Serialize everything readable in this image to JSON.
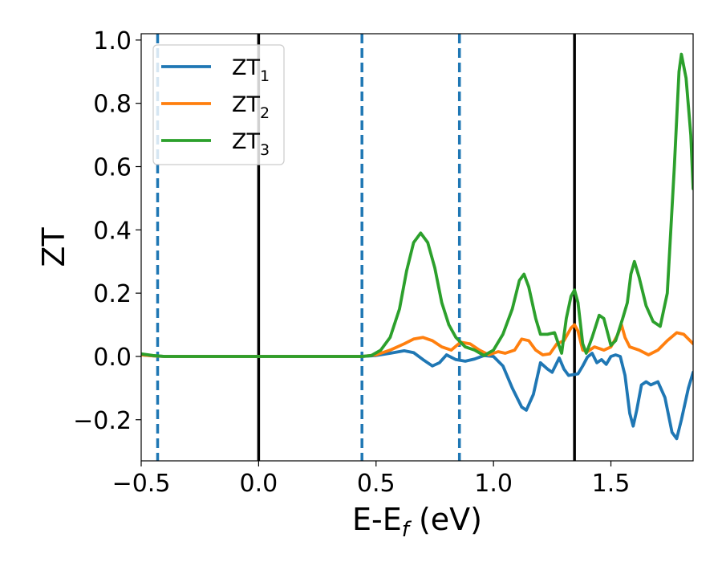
{
  "chart_data": {
    "type": "line",
    "xlabel": {
      "main": "E-E",
      "sub": "f",
      "unit": " (eV)"
    },
    "ylabel": "ZT",
    "xlim": [
      -0.5,
      1.85
    ],
    "ylim": [
      -0.33,
      1.02
    ],
    "xticks": [
      {
        "value": -0.5,
        "label": "−0.5"
      },
      {
        "value": 0.0,
        "label": "0.0"
      },
      {
        "value": 0.5,
        "label": "0.5"
      },
      {
        "value": 1.0,
        "label": "1.0"
      },
      {
        "value": 1.5,
        "label": "1.5"
      }
    ],
    "yticks": [
      {
        "value": -0.2,
        "label": "−0.2"
      },
      {
        "value": 0.0,
        "label": "0.0"
      },
      {
        "value": 0.2,
        "label": "0.2"
      },
      {
        "value": 0.4,
        "label": "0.4"
      },
      {
        "value": 0.6,
        "label": "0.6"
      },
      {
        "value": 0.8,
        "label": "0.8"
      },
      {
        "value": 1.0,
        "label": "1.0"
      }
    ],
    "grid": false,
    "legend_position": "top-left",
    "vertical_lines": [
      {
        "x": -0.43,
        "style": "dashed",
        "color": "#1f77b4"
      },
      {
        "x": 0.0,
        "style": "solid",
        "color": "#000000"
      },
      {
        "x": 0.44,
        "style": "dashed",
        "color": "#1f77b4"
      },
      {
        "x": 0.855,
        "style": "dashed",
        "color": "#1f77b4"
      },
      {
        "x": 1.345,
        "style": "solid",
        "color": "#000000"
      }
    ],
    "series": [
      {
        "name": "ZT",
        "sub": "1",
        "color": "#1f77b4",
        "points": [
          [
            -0.5,
            0.005
          ],
          [
            -0.45,
            0.002
          ],
          [
            -0.4,
            0.0
          ],
          [
            0.0,
            0.0
          ],
          [
            0.44,
            0.0
          ],
          [
            0.5,
            0.003
          ],
          [
            0.56,
            0.01
          ],
          [
            0.62,
            0.018
          ],
          [
            0.66,
            0.012
          ],
          [
            0.7,
            -0.01
          ],
          [
            0.74,
            -0.03
          ],
          [
            0.77,
            -0.02
          ],
          [
            0.8,
            0.005
          ],
          [
            0.84,
            -0.01
          ],
          [
            0.88,
            -0.015
          ],
          [
            0.92,
            -0.008
          ],
          [
            0.96,
            0.003
          ],
          [
            1.0,
            0.0
          ],
          [
            1.04,
            -0.03
          ],
          [
            1.08,
            -0.1
          ],
          [
            1.12,
            -0.16
          ],
          [
            1.14,
            -0.17
          ],
          [
            1.17,
            -0.12
          ],
          [
            1.2,
            -0.02
          ],
          [
            1.23,
            -0.04
          ],
          [
            1.25,
            -0.05
          ],
          [
            1.28,
            -0.005
          ],
          [
            1.3,
            -0.04
          ],
          [
            1.32,
            -0.06
          ],
          [
            1.36,
            -0.055
          ],
          [
            1.38,
            -0.03
          ],
          [
            1.4,
            -0.002
          ],
          [
            1.42,
            0.01
          ],
          [
            1.44,
            -0.02
          ],
          [
            1.46,
            -0.01
          ],
          [
            1.48,
            -0.025
          ],
          [
            1.5,
            0.0
          ],
          [
            1.52,
            0.005
          ],
          [
            1.54,
            0.0
          ],
          [
            1.56,
            -0.06
          ],
          [
            1.58,
            -0.18
          ],
          [
            1.595,
            -0.22
          ],
          [
            1.61,
            -0.17
          ],
          [
            1.63,
            -0.09
          ],
          [
            1.65,
            -0.08
          ],
          [
            1.67,
            -0.09
          ],
          [
            1.7,
            -0.08
          ],
          [
            1.73,
            -0.13
          ],
          [
            1.76,
            -0.24
          ],
          [
            1.78,
            -0.26
          ],
          [
            1.8,
            -0.2
          ],
          [
            1.83,
            -0.1
          ],
          [
            1.85,
            -0.05
          ]
        ]
      },
      {
        "name": "ZT",
        "sub": "2",
        "color": "#ff7f0e",
        "points": [
          [
            -0.5,
            0.005
          ],
          [
            -0.45,
            0.002
          ],
          [
            -0.4,
            0.0
          ],
          [
            0.0,
            0.0
          ],
          [
            0.44,
            0.0
          ],
          [
            0.5,
            0.005
          ],
          [
            0.56,
            0.02
          ],
          [
            0.62,
            0.04
          ],
          [
            0.66,
            0.055
          ],
          [
            0.7,
            0.06
          ],
          [
            0.74,
            0.05
          ],
          [
            0.78,
            0.03
          ],
          [
            0.82,
            0.02
          ],
          [
            0.86,
            0.045
          ],
          [
            0.9,
            0.04
          ],
          [
            0.94,
            0.02
          ],
          [
            0.98,
            0.005
          ],
          [
            1.02,
            0.015
          ],
          [
            1.05,
            0.01
          ],
          [
            1.09,
            0.02
          ],
          [
            1.12,
            0.055
          ],
          [
            1.15,
            0.05
          ],
          [
            1.18,
            0.02
          ],
          [
            1.21,
            0.005
          ],
          [
            1.24,
            0.008
          ],
          [
            1.27,
            0.04
          ],
          [
            1.3,
            0.05
          ],
          [
            1.33,
            0.09
          ],
          [
            1.345,
            0.1
          ],
          [
            1.36,
            0.08
          ],
          [
            1.38,
            0.02
          ],
          [
            1.4,
            0.015
          ],
          [
            1.43,
            0.03
          ],
          [
            1.45,
            0.025
          ],
          [
            1.47,
            0.02
          ],
          [
            1.5,
            0.03
          ],
          [
            1.53,
            0.07
          ],
          [
            1.545,
            0.1
          ],
          [
            1.56,
            0.06
          ],
          [
            1.58,
            0.03
          ],
          [
            1.62,
            0.02
          ],
          [
            1.66,
            0.005
          ],
          [
            1.7,
            0.02
          ],
          [
            1.74,
            0.05
          ],
          [
            1.78,
            0.075
          ],
          [
            1.81,
            0.07
          ],
          [
            1.85,
            0.04
          ]
        ]
      },
      {
        "name": "ZT",
        "sub": "3",
        "color": "#2ca02c",
        "points": [
          [
            -0.5,
            0.008
          ],
          [
            -0.45,
            0.003
          ],
          [
            -0.4,
            0.0
          ],
          [
            0.0,
            0.0
          ],
          [
            0.44,
            0.0
          ],
          [
            0.48,
            0.003
          ],
          [
            0.52,
            0.02
          ],
          [
            0.56,
            0.06
          ],
          [
            0.6,
            0.15
          ],
          [
            0.63,
            0.27
          ],
          [
            0.66,
            0.36
          ],
          [
            0.69,
            0.39
          ],
          [
            0.72,
            0.36
          ],
          [
            0.75,
            0.28
          ],
          [
            0.78,
            0.17
          ],
          [
            0.81,
            0.1
          ],
          [
            0.84,
            0.06
          ],
          [
            0.88,
            0.03
          ],
          [
            0.92,
            0.02
          ],
          [
            0.96,
            0.003
          ],
          [
            1.0,
            0.02
          ],
          [
            1.04,
            0.07
          ],
          [
            1.08,
            0.15
          ],
          [
            1.11,
            0.24
          ],
          [
            1.13,
            0.26
          ],
          [
            1.15,
            0.22
          ],
          [
            1.18,
            0.12
          ],
          [
            1.2,
            0.07
          ],
          [
            1.23,
            0.07
          ],
          [
            1.26,
            0.075
          ],
          [
            1.29,
            0.01
          ],
          [
            1.31,
            0.12
          ],
          [
            1.33,
            0.19
          ],
          [
            1.345,
            0.21
          ],
          [
            1.36,
            0.17
          ],
          [
            1.38,
            0.04
          ],
          [
            1.395,
            0.01
          ],
          [
            1.42,
            0.06
          ],
          [
            1.45,
            0.13
          ],
          [
            1.47,
            0.12
          ],
          [
            1.5,
            0.035
          ],
          [
            1.52,
            0.05
          ],
          [
            1.55,
            0.12
          ],
          [
            1.57,
            0.17
          ],
          [
            1.585,
            0.26
          ],
          [
            1.6,
            0.3
          ],
          [
            1.62,
            0.25
          ],
          [
            1.65,
            0.16
          ],
          [
            1.68,
            0.11
          ],
          [
            1.71,
            0.095
          ],
          [
            1.74,
            0.2
          ],
          [
            1.77,
            0.6
          ],
          [
            1.79,
            0.9
          ],
          [
            1.8,
            0.955
          ],
          [
            1.82,
            0.88
          ],
          [
            1.84,
            0.7
          ],
          [
            1.85,
            0.53
          ]
        ]
      }
    ]
  }
}
